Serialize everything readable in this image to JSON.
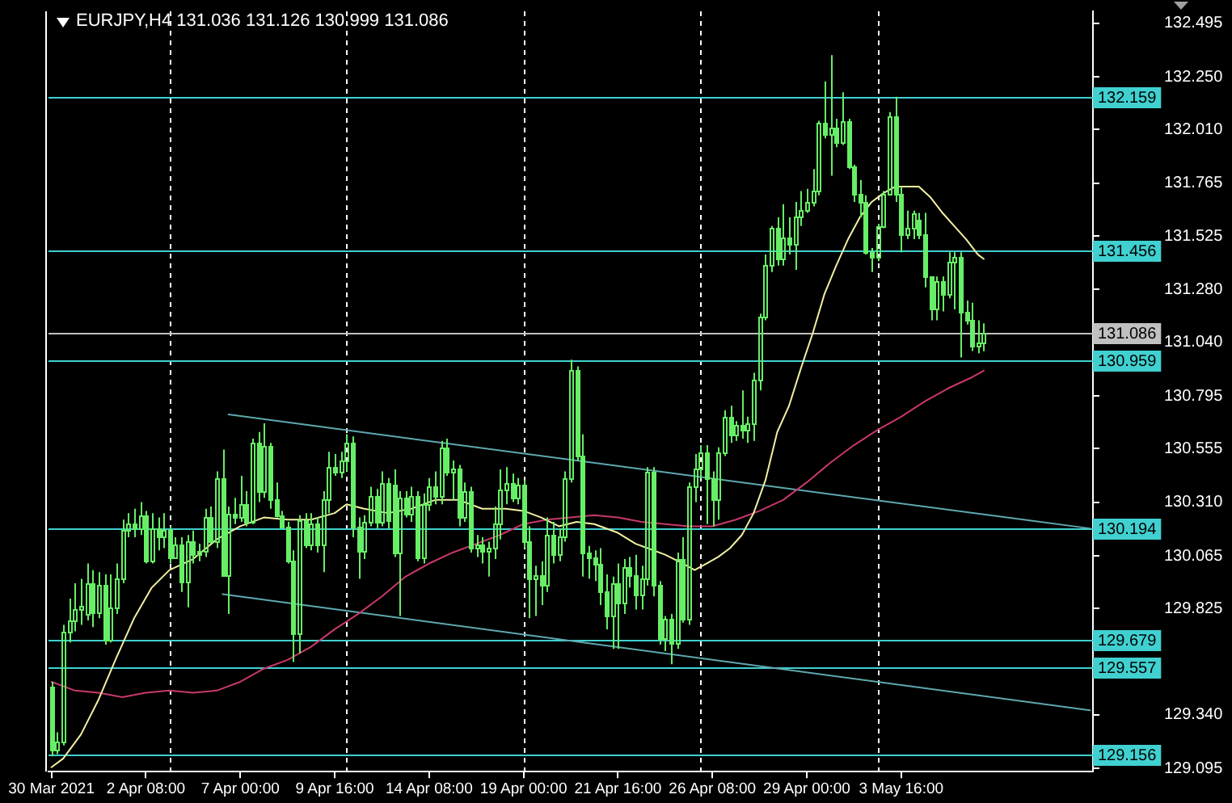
{
  "chart_data": {
    "type": "candlestick",
    "title": "EURJPY,H4 131.036 131.126 130.999 131.086",
    "color": "#66ee66",
    "categories": [
      "30 Mar 2021",
      null,
      null,
      null,
      null,
      null,
      null,
      null,
      null,
      null,
      null,
      null,
      null,
      null,
      null,
      null,
      "2 Apr 08:00",
      null,
      null,
      null,
      null,
      null,
      null,
      null,
      null,
      null,
      null,
      null,
      null,
      null,
      null,
      null,
      "7 Apr 00:00",
      null,
      null,
      null,
      null,
      null,
      null,
      null,
      null,
      null,
      null,
      null,
      null,
      null,
      null,
      null,
      "9 Apr 16:00",
      null,
      null,
      null,
      null,
      null,
      null,
      null,
      null,
      null,
      null,
      null,
      null,
      null,
      null,
      null,
      "14 Apr 08:00",
      null,
      null,
      null,
      null,
      null,
      null,
      null,
      null,
      null,
      null,
      null,
      null,
      null,
      null,
      null,
      "19 Apr 00:00",
      null,
      null,
      null,
      null,
      null,
      null,
      null,
      null,
      null,
      null,
      null,
      null,
      null,
      null,
      null,
      "21 Apr 16:00",
      null,
      null,
      null,
      null,
      null,
      null,
      null,
      null,
      null,
      null,
      null,
      null,
      null,
      null,
      null,
      "26 Apr 08:00",
      null,
      null,
      null,
      null,
      null,
      null,
      null,
      null,
      null,
      null,
      null,
      null,
      null,
      null,
      null,
      "29 Apr 00:00",
      null,
      null,
      null,
      null,
      null,
      null,
      null,
      null,
      null,
      null,
      null,
      null,
      null,
      null,
      null,
      "3 May 16:00",
      null,
      null,
      null,
      null,
      null,
      null,
      null,
      null,
      null,
      null,
      null,
      null,
      null,
      null,
      null,
      null,
      null,
      null,
      null,
      null,
      null,
      null,
      null,
      null,
      null,
      null,
      null,
      null,
      null,
      null,
      null,
      null
    ],
    "ohlc": [
      [
        129.47,
        129.49,
        129.15,
        129.18
      ],
      [
        129.18,
        129.26,
        129.16,
        129.22
      ],
      [
        129.22,
        129.75,
        129.2,
        129.72
      ],
      [
        129.72,
        129.87,
        129.67,
        129.77
      ],
      [
        129.77,
        129.94,
        129.72,
        129.82
      ],
      [
        129.82,
        129.96,
        129.75,
        129.84
      ],
      [
        129.8,
        130.03,
        129.77,
        129.94
      ],
      [
        129.94,
        130.0,
        129.74,
        129.81
      ],
      [
        129.81,
        129.99,
        129.78,
        129.93
      ],
      [
        129.93,
        129.98,
        129.66,
        129.68
      ],
      [
        129.68,
        129.98,
        129.67,
        129.83
      ],
      [
        129.83,
        130.03,
        129.8,
        129.96
      ],
      [
        129.96,
        130.23,
        129.94,
        130.18
      ],
      [
        130.18,
        130.26,
        130.15,
        130.21
      ],
      [
        130.21,
        130.28,
        130.15,
        130.19
      ],
      [
        130.19,
        130.31,
        130.16,
        130.25
      ],
      [
        130.25,
        130.27,
        130.03,
        130.04
      ],
      [
        130.04,
        130.26,
        130.03,
        130.19
      ],
      [
        130.19,
        130.24,
        130.09,
        130.15
      ],
      [
        130.15,
        130.26,
        130.1,
        130.18
      ],
      [
        130.18,
        130.2,
        130.03,
        130.06
      ],
      [
        130.06,
        130.15,
        130.05,
        130.12
      ],
      [
        130.12,
        130.15,
        129.9,
        129.95
      ],
      [
        129.95,
        130.16,
        129.83,
        130.13
      ],
      [
        130.13,
        130.18,
        130.03,
        130.07
      ],
      [
        130.07,
        130.12,
        130.04,
        130.09
      ],
      [
        130.09,
        130.28,
        130.06,
        130.24
      ],
      [
        130.24,
        130.29,
        130.12,
        130.13
      ],
      [
        130.13,
        130.45,
        130.1,
        130.42
      ],
      [
        130.42,
        130.55,
        129.97,
        129.98
      ],
      [
        129.98,
        130.29,
        129.8,
        130.26
      ],
      [
        130.26,
        130.33,
        130.21,
        130.24
      ],
      [
        130.24,
        130.43,
        130.22,
        130.3
      ],
      [
        130.3,
        130.36,
        130.2,
        130.22
      ],
      [
        130.22,
        130.6,
        130.21,
        130.58
      ],
      [
        130.58,
        130.63,
        130.31,
        130.36
      ],
      [
        130.36,
        130.67,
        130.33,
        130.57
      ],
      [
        130.57,
        130.58,
        130.28,
        130.32
      ],
      [
        130.32,
        130.4,
        130.24,
        130.25
      ],
      [
        130.25,
        130.27,
        130.19,
        130.2
      ],
      [
        130.2,
        130.22,
        130.03,
        130.04
      ],
      [
        130.04,
        130.09,
        129.58,
        129.71
      ],
      [
        129.71,
        130.25,
        129.62,
        130.23
      ],
      [
        130.23,
        130.26,
        130.1,
        130.12
      ],
      [
        130.12,
        130.26,
        130.09,
        130.21
      ],
      [
        130.21,
        130.24,
        130.08,
        130.12
      ],
      [
        130.12,
        130.36,
        129.99,
        130.32
      ],
      [
        130.32,
        130.54,
        130.26,
        130.47
      ],
      [
        130.47,
        130.53,
        130.43,
        130.45
      ],
      [
        130.45,
        130.54,
        130.42,
        130.5
      ],
      [
        130.5,
        130.62,
        130.45,
        130.58
      ],
      [
        130.58,
        130.61,
        130.15,
        130.2
      ],
      [
        130.2,
        130.24,
        129.96,
        130.09
      ],
      [
        130.09,
        130.25,
        130.05,
        130.22
      ],
      [
        130.22,
        130.38,
        130.2,
        130.34
      ],
      [
        130.34,
        130.37,
        130.19,
        130.22
      ],
      [
        130.22,
        130.45,
        130.2,
        130.4
      ],
      [
        130.4,
        130.42,
        130.19,
        130.23
      ],
      [
        130.39,
        130.46,
        130.06,
        130.08
      ],
      [
        130.08,
        130.36,
        129.79,
        130.33
      ],
      [
        130.33,
        130.36,
        130.24,
        130.26
      ],
      [
        130.26,
        130.38,
        130.22,
        130.34
      ],
      [
        130.34,
        130.36,
        130.04,
        130.06
      ],
      [
        130.06,
        130.35,
        130.03,
        130.3
      ],
      [
        130.3,
        130.42,
        130.27,
        130.38
      ],
      [
        130.38,
        130.45,
        130.3,
        130.34
      ],
      [
        130.34,
        130.59,
        130.3,
        130.56
      ],
      [
        130.56,
        130.6,
        130.43,
        130.45
      ],
      [
        130.45,
        130.5,
        130.32,
        130.46
      ],
      [
        130.46,
        130.48,
        130.2,
        130.24
      ],
      [
        130.24,
        130.4,
        130.22,
        130.36
      ],
      [
        130.36,
        130.38,
        130.08,
        130.1
      ],
      [
        130.1,
        130.16,
        130.06,
        130.12
      ],
      [
        130.12,
        130.15,
        130.03,
        130.09
      ],
      [
        130.09,
        130.13,
        129.97,
        130.1
      ],
      [
        130.1,
        130.29,
        130.05,
        130.21
      ],
      [
        130.21,
        130.46,
        130.14,
        130.37
      ],
      [
        130.37,
        130.47,
        130.3,
        130.4
      ],
      [
        130.4,
        130.44,
        130.31,
        130.33
      ],
      [
        130.33,
        130.42,
        130.3,
        130.39
      ],
      [
        130.39,
        130.41,
        130.1,
        130.13
      ],
      [
        130.13,
        130.2,
        129.78,
        129.96
      ],
      [
        129.96,
        130.02,
        129.79,
        129.98
      ],
      [
        129.98,
        130.04,
        129.84,
        129.93
      ],
      [
        129.93,
        130.24,
        129.9,
        130.16
      ],
      [
        130.16,
        130.22,
        130.03,
        130.07
      ],
      [
        130.07,
        130.19,
        130.04,
        130.15
      ],
      [
        130.15,
        130.45,
        130.13,
        130.42
      ],
      [
        130.42,
        130.96,
        130.4,
        130.91
      ],
      [
        130.91,
        130.93,
        130.5,
        130.52
      ],
      [
        130.52,
        130.62,
        129.97,
        130.08
      ],
      [
        130.08,
        130.11,
        129.96,
        130.06
      ],
      [
        130.06,
        130.09,
        129.95,
        130.03
      ],
      [
        130.03,
        130.1,
        129.84,
        129.9
      ],
      [
        129.9,
        129.98,
        129.73,
        129.79
      ],
      [
        129.79,
        129.97,
        129.64,
        129.94
      ],
      [
        129.94,
        130.03,
        129.64,
        129.85
      ],
      [
        129.85,
        130.05,
        129.8,
        130.01
      ],
      [
        130.01,
        130.06,
        129.92,
        129.98
      ],
      [
        129.98,
        130.07,
        129.82,
        129.89
      ],
      [
        129.89,
        130.02,
        129.82,
        129.96
      ],
      [
        129.96,
        130.47,
        129.93,
        130.45
      ],
      [
        130.45,
        130.47,
        129.88,
        129.93
      ],
      [
        129.93,
        129.95,
        129.66,
        129.69
      ],
      [
        129.69,
        129.79,
        129.63,
        129.78
      ],
      [
        129.78,
        129.8,
        129.57,
        129.67
      ],
      [
        129.67,
        130.08,
        129.64,
        130.05
      ],
      [
        130.05,
        130.15,
        129.76,
        129.78
      ],
      [
        129.78,
        130.4,
        129.75,
        130.38
      ],
      [
        130.38,
        130.53,
        130.31,
        130.46
      ],
      [
        130.46,
        130.57,
        130.42,
        130.54
      ],
      [
        130.54,
        130.57,
        130.21,
        130.42
      ],
      [
        130.42,
        130.45,
        130.2,
        130.32
      ],
      [
        130.32,
        130.56,
        130.23,
        130.54
      ],
      [
        130.54,
        130.73,
        130.52,
        130.7
      ],
      [
        130.7,
        130.75,
        130.58,
        130.62
      ],
      [
        130.62,
        130.68,
        130.59,
        130.66
      ],
      [
        130.66,
        130.82,
        130.6,
        130.64
      ],
      [
        130.64,
        130.7,
        130.58,
        130.67
      ],
      [
        130.67,
        130.9,
        130.59,
        130.87
      ],
      [
        130.87,
        131.17,
        130.82,
        131.16
      ],
      [
        131.16,
        131.44,
        131.14,
        131.39
      ],
      [
        131.39,
        131.57,
        131.36,
        131.56
      ],
      [
        131.56,
        131.61,
        131.39,
        131.42
      ],
      [
        131.42,
        131.67,
        131.39,
        131.52
      ],
      [
        131.52,
        131.61,
        131.44,
        131.49
      ],
      [
        131.49,
        131.68,
        131.37,
        131.61
      ],
      [
        131.61,
        131.73,
        131.57,
        131.64
      ],
      [
        131.64,
        131.74,
        131.63,
        131.68
      ],
      [
        131.68,
        131.83,
        131.66,
        131.73
      ],
      [
        131.73,
        132.05,
        131.71,
        132.04
      ],
      [
        132.04,
        132.23,
        131.97,
        131.99
      ],
      [
        131.99,
        132.35,
        131.8,
        132.02
      ],
      [
        132.02,
        132.06,
        131.93,
        131.95
      ],
      [
        131.95,
        132.18,
        131.94,
        132.05
      ],
      [
        132.05,
        132.06,
        131.83,
        131.84
      ],
      [
        131.84,
        131.85,
        131.68,
        131.72
      ],
      [
        131.72,
        131.78,
        131.61,
        131.68
      ],
      [
        131.68,
        131.71,
        131.44,
        131.45
      ],
      [
        131.45,
        131.47,
        131.36,
        131.43
      ],
      [
        131.43,
        131.58,
        131.41,
        131.57
      ],
      [
        131.57,
        131.73,
        131.56,
        131.72
      ],
      [
        131.72,
        132.09,
        131.71,
        132.07
      ],
      [
        132.07,
        132.16,
        131.68,
        131.72
      ],
      [
        131.72,
        131.75,
        131.45,
        131.53
      ],
      [
        131.53,
        131.64,
        131.51,
        131.56
      ],
      [
        131.56,
        131.64,
        131.51,
        131.63
      ],
      [
        131.6,
        131.63,
        131.51,
        131.53
      ],
      [
        131.53,
        131.63,
        131.29,
        131.34
      ],
      [
        131.34,
        131.34,
        131.14,
        131.19
      ],
      [
        131.19,
        131.34,
        131.14,
        131.32
      ],
      [
        131.32,
        131.34,
        131.18,
        131.26
      ],
      [
        131.26,
        131.45,
        131.24,
        131.41
      ],
      [
        131.41,
        131.45,
        131.19,
        131.43
      ],
      [
        131.43,
        131.45,
        130.97,
        131.18
      ],
      [
        131.18,
        131.23,
        131.12,
        131.14
      ],
      [
        131.14,
        131.22,
        131.0,
        131.02
      ],
      [
        131.02,
        131.14,
        130.99,
        131.04
      ],
      [
        131.036,
        131.126,
        130.999,
        131.086
      ],
      null,
      null,
      null,
      null,
      null,
      null,
      null,
      null,
      null,
      null,
      null,
      null,
      null,
      null,
      null,
      null,
      null,
      null
    ],
    "series": [
      {
        "type": "line",
        "color": "#f2f0a0",
        "values": [
          129.1,
          null,
          129.14,
          null,
          null,
          129.25,
          null,
          null,
          129.41,
          null,
          null,
          129.6,
          null,
          null,
          129.78,
          null,
          null,
          129.92,
          null,
          null,
          130.0,
          null,
          null,
          null,
          130.05,
          null,
          null,
          null,
          130.14,
          null,
          null,
          null,
          130.2,
          null,
          null,
          null,
          130.24,
          null,
          null,
          null,
          130.23,
          null,
          null,
          null,
          130.23,
          null,
          null,
          null,
          130.26,
          null,
          130.3,
          null,
          null,
          130.28,
          null,
          null,
          null,
          130.26,
          null,
          null,
          null,
          130.28,
          null,
          null,
          null,
          130.32,
          null,
          null,
          null,
          130.32,
          null,
          null,
          null,
          130.28,
          null,
          null,
          null,
          130.28,
          null,
          null,
          130.27,
          null,
          null,
          130.24,
          null,
          null,
          130.2,
          null,
          null,
          130.22,
          null,
          null,
          130.21,
          null,
          null,
          null,
          130.17,
          null,
          null,
          130.12,
          null,
          130.1,
          null,
          null,
          130.07,
          null,
          null,
          130.03,
          null,
          130.0,
          null,
          130.03,
          null,
          130.06,
          null,
          130.1,
          null,
          130.16,
          null,
          130.26,
          null,
          130.41,
          null,
          130.63,
          null,
          130.75,
          null,
          130.92,
          null,
          131.08,
          null,
          131.26,
          null,
          131.39,
          null,
          131.51,
          null,
          131.61,
          null,
          131.68,
          null,
          131.72,
          null,
          131.75,
          null,
          131.75,
          null,
          131.75,
          null,
          131.7,
          null,
          131.63,
          null,
          131.57,
          null,
          131.51,
          null,
          131.44,
          131.42,
          null,
          null,
          null,
          null,
          null,
          null,
          null,
          null,
          null,
          null,
          null,
          null,
          null,
          null,
          null,
          null,
          null,
          null
        ]
      },
      {
        "type": "line",
        "color": "#c8386c",
        "values": [
          129.49,
          null,
          null,
          null,
          129.45,
          null,
          null,
          null,
          129.44,
          null,
          null,
          null,
          129.42,
          null,
          null,
          null,
          129.44,
          null,
          null,
          null,
          129.45,
          null,
          null,
          null,
          129.44,
          null,
          null,
          null,
          129.45,
          null,
          null,
          null,
          129.49,
          null,
          null,
          null,
          129.55,
          null,
          null,
          null,
          129.59,
          null,
          null,
          null,
          129.65,
          null,
          null,
          null,
          129.73,
          null,
          null,
          null,
          129.8,
          null,
          null,
          null,
          129.88,
          null,
          null,
          null,
          129.97,
          null,
          null,
          null,
          130.03,
          null,
          null,
          null,
          130.08,
          null,
          null,
          null,
          130.12,
          null,
          null,
          null,
          130.16,
          null,
          null,
          null,
          130.21,
          null,
          null,
          null,
          130.23,
          null,
          null,
          null,
          130.24,
          null,
          null,
          null,
          130.25,
          null,
          null,
          null,
          130.24,
          null,
          null,
          null,
          130.22,
          null,
          null,
          null,
          130.21,
          null,
          null,
          null,
          130.2,
          null,
          null,
          null,
          130.2,
          null,
          null,
          null,
          130.23,
          null,
          null,
          null,
          130.27,
          null,
          null,
          null,
          130.32,
          null,
          null,
          null,
          130.4,
          null,
          null,
          null,
          130.49,
          null,
          null,
          null,
          130.57,
          null,
          null,
          null,
          130.64,
          null,
          null,
          null,
          130.7,
          null,
          null,
          null,
          130.77,
          null,
          null,
          null,
          130.83,
          null,
          null,
          null,
          130.88,
          null,
          130.91,
          null,
          null,
          null,
          null,
          null,
          null,
          null,
          null,
          null,
          null,
          null,
          null,
          null,
          null,
          null,
          null,
          null,
          null
        ]
      },
      {
        "type": "line",
        "color": "#5fa8b0",
        "values": [
          null,
          null,
          null,
          null,
          null,
          null,
          null,
          null,
          null,
          null,
          null,
          null,
          null,
          null,
          null,
          null,
          null,
          null,
          null,
          null,
          null,
          null,
          null,
          null,
          null,
          null,
          null,
          null,
          null,
          null,
          130.71,
          null,
          null,
          null,
          null,
          null,
          null,
          null,
          null,
          null,
          null,
          null,
          null,
          null,
          null,
          null,
          null,
          null,
          null,
          null,
          null,
          null,
          null,
          null,
          null,
          null,
          null,
          null,
          null,
          null,
          null,
          null,
          null,
          null,
          null,
          null,
          null,
          null,
          null,
          null,
          null,
          null,
          null,
          null,
          null,
          null,
          null,
          null,
          null,
          null,
          null,
          null,
          null,
          null,
          null,
          null,
          null,
          null,
          null,
          null,
          null,
          null,
          null,
          null,
          null,
          null,
          null,
          null,
          null,
          null,
          null,
          null,
          null,
          null,
          null,
          null,
          null,
          null,
          null,
          null,
          null,
          null,
          null,
          null,
          null,
          null,
          null,
          null,
          null,
          null,
          null,
          null,
          null,
          null,
          null,
          null,
          null,
          null,
          null,
          null,
          null,
          null,
          null,
          null,
          null,
          null,
          null,
          null,
          null,
          null,
          null,
          null,
          null,
          null,
          null,
          null,
          null,
          null,
          null,
          null,
          null,
          null,
          null,
          null,
          null,
          null,
          null,
          null,
          null,
          null,
          null,
          null,
          null,
          null,
          null,
          null,
          null,
          null,
          null,
          null,
          null,
          null,
          null,
          null,
          null,
          null,
          130.19
        ]
      },
      {
        "type": "line",
        "color": "#5fa8b0",
        "values": [
          null,
          null,
          null,
          null,
          null,
          null,
          null,
          null,
          null,
          null,
          null,
          null,
          null,
          null,
          null,
          null,
          null,
          null,
          null,
          null,
          null,
          null,
          null,
          null,
          null,
          null,
          null,
          null,
          null,
          129.89,
          null,
          null,
          null,
          null,
          null,
          null,
          null,
          null,
          null,
          null,
          null,
          null,
          null,
          null,
          null,
          null,
          null,
          null,
          null,
          null,
          null,
          null,
          null,
          null,
          null,
          null,
          null,
          null,
          null,
          null,
          null,
          null,
          null,
          null,
          null,
          null,
          null,
          null,
          null,
          null,
          null,
          null,
          null,
          null,
          null,
          null,
          null,
          null,
          null,
          null,
          null,
          null,
          null,
          null,
          null,
          null,
          null,
          null,
          null,
          null,
          null,
          null,
          null,
          null,
          null,
          null,
          null,
          null,
          null,
          null,
          null,
          null,
          null,
          null,
          null,
          null,
          null,
          null,
          null,
          null,
          null,
          null,
          null,
          null,
          null,
          null,
          null,
          null,
          null,
          null,
          null,
          null,
          null,
          null,
          null,
          null,
          null,
          null,
          null,
          null,
          null,
          null,
          null,
          null,
          null,
          null,
          null,
          null,
          null,
          null,
          null,
          null,
          null,
          null,
          null,
          null,
          null,
          null,
          null,
          null,
          null,
          null,
          null,
          null,
          null,
          null,
          null,
          null,
          null,
          null,
          null,
          null,
          null,
          null,
          null,
          null,
          null,
          null,
          null,
          null,
          null,
          null,
          null,
          null,
          null,
          null,
          129.36
        ]
      }
    ],
    "ylim": [
      129.08,
      132.55
    ],
    "yticks": [
      132.495,
      {
        "value": 132.25,
        "label": "132.250"
      },
      {
        "value": 132.01,
        "label": "132.010"
      },
      131.765,
      131.525,
      {
        "value": 131.28,
        "label": "131.280"
      },
      {
        "value": 131.04,
        "label": "131.040"
      },
      130.795,
      130.555,
      {
        "value": 130.31,
        "label": "130.310"
      },
      130.065,
      129.825,
      {
        "value": 129.34,
        "label": "129.340"
      },
      129.095
    ],
    "ref_lines": [
      {
        "axis": "y",
        "value": 132.159,
        "label": "132.159",
        "color": "#40d0d0"
      },
      {
        "axis": "y",
        "value": 131.456,
        "label": "131.456",
        "color": "#40d0d0"
      },
      {
        "axis": "y",
        "value": 131.086,
        "label": "131.086",
        "color": "#c0c0c0"
      },
      {
        "axis": "y",
        "value": 130.959,
        "label": "130.959",
        "color": "#40d0d0"
      },
      {
        "axis": "y",
        "value": 130.194,
        "label": "130.194",
        "color": "#40d0d0"
      },
      {
        "axis": "y",
        "value": 129.679,
        "label": "129.679",
        "color": "#40d0d0"
      },
      {
        "axis": "y",
        "value": 129.557,
        "label": "129.557",
        "color": "#40d0d0"
      },
      {
        "axis": "y",
        "value": 129.156,
        "label": "129.156",
        "color": "#40d0d0"
      }
    ]
  }
}
